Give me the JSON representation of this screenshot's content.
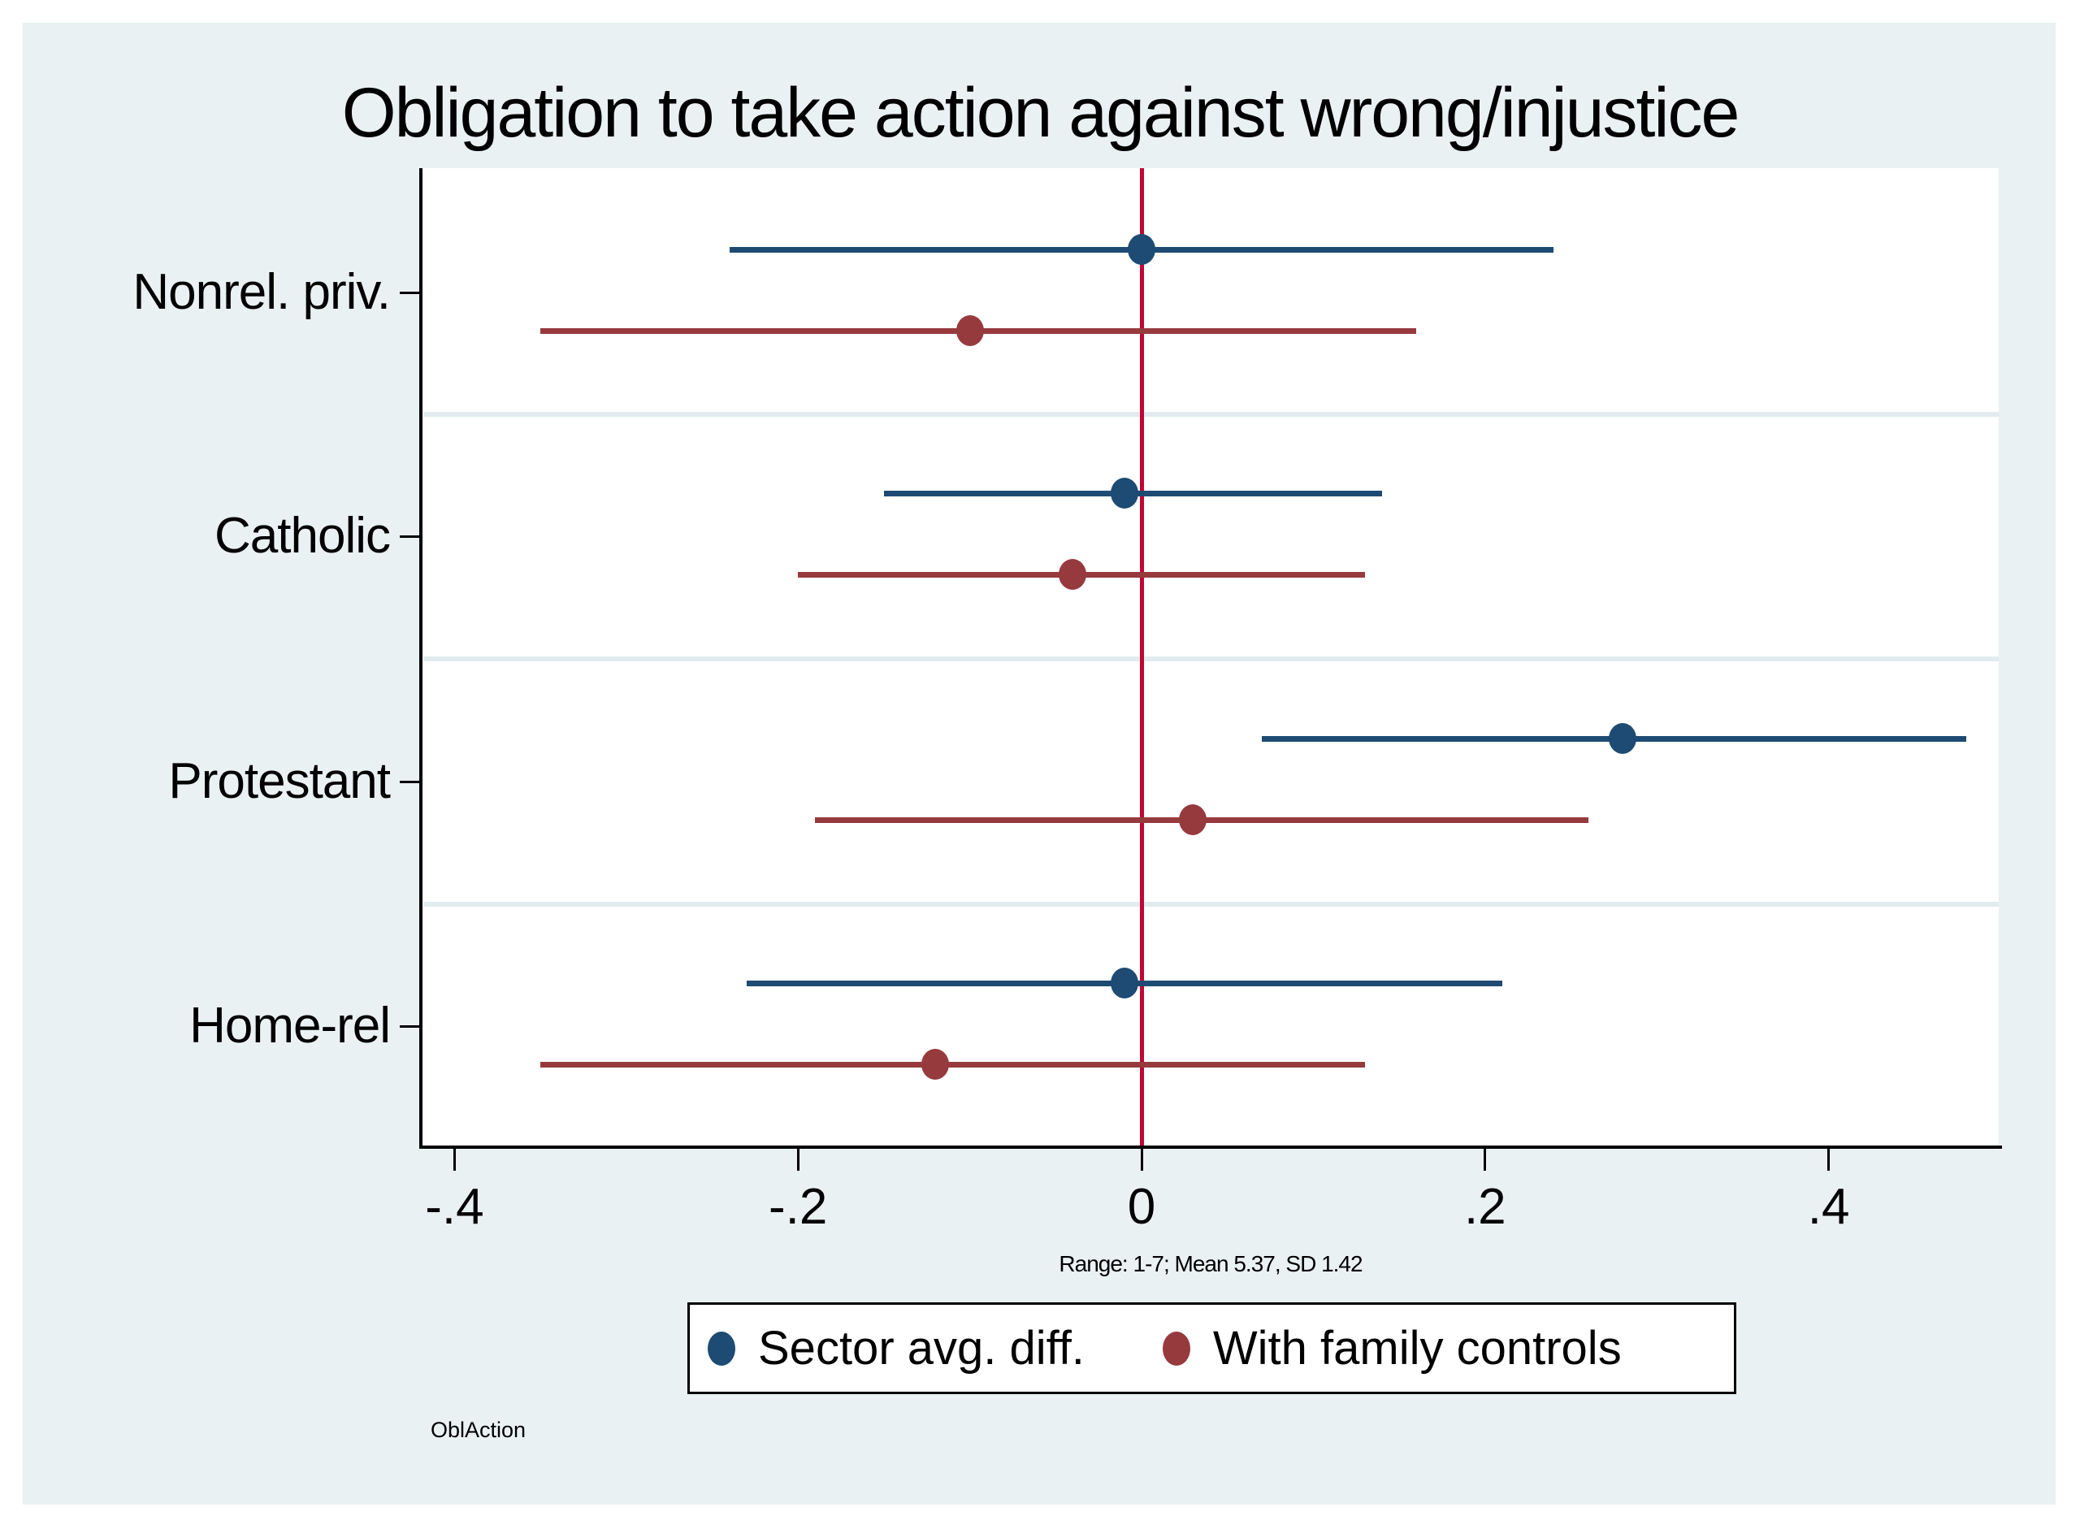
{
  "title": "Obligation to take action against wrong/injustice",
  "footnote": "Range: 1-7; Mean 5.37, SD 1.42",
  "watermark": "OblAction",
  "legend": [
    {
      "label": "Sector avg. diff.",
      "color": "#1d4b73"
    },
    {
      "label": "With family controls",
      "color": "#963a3e"
    }
  ],
  "colors": {
    "canvas_bg": "#eaf1f3",
    "plot_bg": "#ffffff",
    "band_separator": "#e2ebee",
    "zero_line": "#c10534",
    "navy": "#1d4b73",
    "maroon": "#963a3e",
    "axis": "#000000"
  },
  "chart_data": {
    "type": "scatter",
    "orientation": "horizontal",
    "title": "Obligation to take action against wrong/injustice",
    "categories": [
      "Nonrel. priv.",
      "Catholic",
      "Protestant",
      "Home-rel"
    ],
    "xlabel": "Range: 1-7; Mean 5.37, SD 1.42",
    "ylabel": "",
    "xlim": [
      -0.42,
      0.5
    ],
    "xticks": [
      -0.4,
      -0.2,
      0,
      0.2,
      0.4
    ],
    "xtick_labels": [
      "-.4",
      "-.2",
      "0",
      ".2",
      ".4"
    ],
    "zero_line": 0,
    "grid": "horizontal-band-separators",
    "legend_position": "bottom",
    "series": [
      {
        "name": "Sector avg. diff.",
        "color": "#1d4b73",
        "points": [
          {
            "category": "Nonrel. priv.",
            "estimate": 0.0,
            "ci_low": -0.24,
            "ci_high": 0.24
          },
          {
            "category": "Catholic",
            "estimate": -0.01,
            "ci_low": -0.15,
            "ci_high": 0.14
          },
          {
            "category": "Protestant",
            "estimate": 0.28,
            "ci_low": 0.07,
            "ci_high": 0.48
          },
          {
            "category": "Home-rel",
            "estimate": -0.01,
            "ci_low": -0.23,
            "ci_high": 0.21
          }
        ]
      },
      {
        "name": "With family controls",
        "color": "#963a3e",
        "points": [
          {
            "category": "Nonrel. priv.",
            "estimate": -0.1,
            "ci_low": -0.35,
            "ci_high": 0.16
          },
          {
            "category": "Catholic",
            "estimate": -0.04,
            "ci_low": -0.2,
            "ci_high": 0.13
          },
          {
            "category": "Protestant",
            "estimate": 0.03,
            "ci_low": -0.19,
            "ci_high": 0.26
          },
          {
            "category": "Home-rel",
            "estimate": -0.12,
            "ci_low": -0.35,
            "ci_high": 0.13
          }
        ]
      }
    ]
  }
}
